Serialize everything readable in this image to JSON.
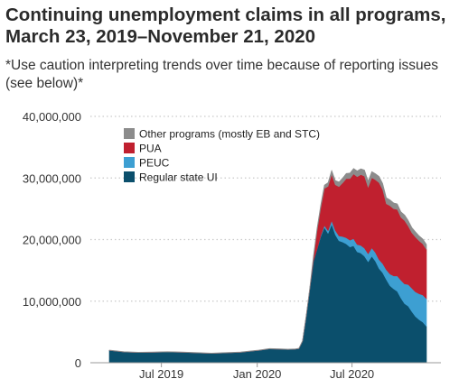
{
  "chart_data": {
    "type": "area",
    "stacked": true,
    "title": "Continuing unemployment claims in all programs, March 23, 2019–November 21, 2020",
    "subtitle": "*Use caution interpreting trends over time because of reporting issues (see below)*",
    "xlabel": "",
    "ylabel": "",
    "x_range": [
      "2019-03-23",
      "2020-11-21"
    ],
    "ylim": [
      0,
      40000000
    ],
    "y_ticks": [
      {
        "value": 0,
        "label": "0"
      },
      {
        "value": 10000000,
        "label": "10,000,000"
      },
      {
        "value": 20000000,
        "label": "20,000,000"
      },
      {
        "value": 30000000,
        "label": "30,000,000"
      },
      {
        "value": 40000000,
        "label": "40,000,000"
      }
    ],
    "x_ticks": [
      {
        "date": "2019-07-01",
        "label": "Jul 2019"
      },
      {
        "date": "2020-01-01",
        "label": "Jan 2020"
      },
      {
        "date": "2020-07-01",
        "label": "Jul 2020"
      }
    ],
    "grid": {
      "horizontal": true,
      "style": "dotted"
    },
    "legend_position": "top-left",
    "x": [
      "2019-03-23",
      "2019-04-20",
      "2019-05-18",
      "2019-06-15",
      "2019-07-13",
      "2019-08-10",
      "2019-09-07",
      "2019-10-05",
      "2019-11-02",
      "2019-11-30",
      "2019-12-28",
      "2020-01-04",
      "2020-01-25",
      "2020-02-15",
      "2020-02-29",
      "2020-03-14",
      "2020-03-21",
      "2020-03-28",
      "2020-04-04",
      "2020-04-11",
      "2020-04-18",
      "2020-04-25",
      "2020-05-02",
      "2020-05-09",
      "2020-05-16",
      "2020-05-23",
      "2020-05-30",
      "2020-06-06",
      "2020-06-13",
      "2020-06-20",
      "2020-06-27",
      "2020-07-04",
      "2020-07-11",
      "2020-07-18",
      "2020-07-25",
      "2020-08-01",
      "2020-08-08",
      "2020-08-15",
      "2020-08-22",
      "2020-08-29",
      "2020-09-05",
      "2020-09-12",
      "2020-09-19",
      "2020-09-26",
      "2020-10-03",
      "2020-10-10",
      "2020-10-17",
      "2020-10-24",
      "2020-10-31",
      "2020-11-07",
      "2020-11-14",
      "2020-11-21"
    ],
    "series": [
      {
        "name": "Regular state UI",
        "color": "#0b4f6c",
        "values": [
          2000000,
          1750000,
          1650000,
          1700000,
          1750000,
          1700000,
          1600000,
          1500000,
          1600000,
          1700000,
          1950000,
          2000000,
          2250000,
          2200000,
          2150000,
          2200000,
          2300000,
          3500000,
          7500000,
          12000000,
          16500000,
          18500000,
          20500000,
          22000000,
          21000000,
          22500000,
          20800000,
          19800000,
          19600000,
          19300000,
          18800000,
          19000000,
          18000000,
          17800000,
          17300000,
          16400000,
          17300000,
          16500000,
          15300000,
          14600000,
          13500000,
          12500000,
          12000000,
          11600000,
          10500000,
          9600000,
          9200000,
          8300000,
          7500000,
          7000000,
          6600000,
          5900000
        ]
      },
      {
        "name": "PEUC",
        "color": "#3d9fd2",
        "values": [
          0,
          0,
          0,
          0,
          0,
          0,
          0,
          0,
          0,
          0,
          0,
          0,
          0,
          0,
          0,
          0,
          0,
          0,
          0,
          0,
          0,
          0,
          150000,
          300000,
          450000,
          600000,
          700000,
          800000,
          900000,
          1000000,
          1100000,
          1150000,
          1200000,
          1250000,
          1300000,
          1300000,
          1350000,
          1400000,
          1450000,
          1500000,
          1600000,
          1900000,
          2100000,
          2500000,
          2900000,
          3200000,
          3500000,
          3800000,
          4000000,
          4200000,
          4400000,
          4500000
        ]
      },
      {
        "name": "PUA",
        "color": "#c0202f",
        "values": [
          0,
          0,
          0,
          0,
          0,
          0,
          0,
          0,
          0,
          0,
          0,
          0,
          0,
          0,
          0,
          0,
          0,
          0,
          0,
          0,
          500000,
          3000000,
          4500000,
          6000000,
          7200000,
          7500000,
          7400000,
          8000000,
          8700000,
          9600000,
          10000000,
          10500000,
          11000000,
          11500000,
          11700000,
          10800000,
          11400000,
          11800000,
          12500000,
          12000000,
          10700000,
          11100000,
          10900000,
          10800000,
          10200000,
          10300000,
          9500000,
          9000000,
          8900000,
          8600000,
          8300000,
          8000000
        ]
      },
      {
        "name": "Other programs (mostly EB and STC)",
        "color": "#8c8c8c",
        "values": [
          60000,
          60000,
          60000,
          60000,
          60000,
          60000,
          60000,
          60000,
          60000,
          60000,
          60000,
          60000,
          60000,
          60000,
          60000,
          60000,
          60000,
          100000,
          200000,
          300000,
          400000,
          450000,
          500000,
          550000,
          600000,
          650000,
          700000,
          750000,
          800000,
          850000,
          900000,
          900000,
          950000,
          950000,
          1000000,
          1000000,
          1000000,
          1000000,
          1000000,
          1000000,
          1000000,
          950000,
          950000,
          900000,
          900000,
          900000,
          900000,
          850000,
          850000,
          800000,
          800000,
          800000
        ]
      }
    ],
    "legend": [
      "Other programs (mostly EB and STC)",
      "PUA",
      "PEUC",
      "Regular state UI"
    ]
  }
}
